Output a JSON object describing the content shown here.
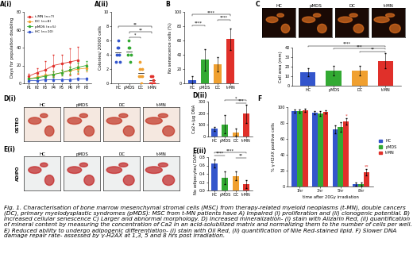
{
  "caption": "Fig. 1. Characterisation of bone marrow mesenchymal stromal cells (MSC) from therapy-related myeloid neoplasms (t-MN), double cancers (DC), primary myelodysplastic syndromes (pMDS): MSC from t-MN patients have A) Impaired (i) proliferation and (ii) clonogenic potential. B) Increased cellular senescence C) Larger and abnormal morphology. D) Increased mineralization- (i) stain with Alizarin Red, (ii) quantification of mineral content by measuring the concentration of Ca2 in an acid-solubilized matrix and normalizing them to the number of cells per well. E) Reduced ability to undergo adipogenic differentiation- (i) stain with Oil Red, (ii) quantification of Nile Red-stained lipid. F) Slower DNA damage repair rate- assessed by γ-H2AX at 1,3, 5 and 8 hrs post irradiation.",
  "images": [
    {
      "title": "C",
      "labels": [
        "HC",
        "pMDS",
        "DC",
        "t-MN"
      ]
    },
    {
      "title": "D(i)",
      "row_label": "OSTEO",
      "labels": [
        "HC",
        "pMDS",
        "DC",
        "t-MN"
      ]
    },
    {
      "title": "E(i)",
      "row_label": "ADIPO",
      "labels": [
        "HC",
        "pMDS",
        "DC",
        "t-MN"
      ]
    }
  ],
  "chart_data": [
    {
      "type": "line",
      "title": "A(i)",
      "y_label": "Days for population doubling",
      "categories": [
        "P1",
        "P2",
        "P3",
        "P4",
        "P5",
        "P6",
        "P7",
        "P8"
      ],
      "ylim": [
        0,
        80
      ],
      "yticks": [
        0,
        20,
        40,
        60,
        80
      ],
      "legend": "upper left",
      "series": [
        {
          "name": "t-MN (n=7)",
          "color": "#e0302a",
          "marker": "o",
          "values": [
            8,
            12,
            15,
            20,
            22,
            24,
            26,
            null
          ],
          "errors": [
            3,
            5,
            10,
            12,
            10,
            15,
            15,
            null
          ]
        },
        {
          "name": "DC (n=8)",
          "color": "#f0a030",
          "marker": "o",
          "values": [
            5,
            7,
            9,
            10,
            12,
            14,
            16,
            17
          ],
          "errors": [
            1,
            2,
            2,
            3,
            3,
            4,
            4,
            4
          ]
        },
        {
          "name": "pMDS (n=5)",
          "color": "#33aa33",
          "marker": "o",
          "values": [
            5,
            6,
            8,
            10,
            12,
            15,
            18,
            20
          ],
          "errors": [
            1,
            2,
            2,
            3,
            3,
            4,
            5,
            5
          ]
        },
        {
          "name": "HC (n=10)",
          "color": "#3355cc",
          "marker": "o",
          "values": [
            3,
            3,
            4,
            4,
            4,
            4,
            5,
            5
          ],
          "errors": [
            1,
            1,
            1,
            1,
            1,
            1,
            1,
            1
          ]
        }
      ]
    },
    {
      "type": "scatter",
      "title": "A(ii)",
      "y_label": "Colonies/ 20000 cells",
      "categories": [
        "HC",
        "pMDS",
        "DC",
        "t-MN"
      ],
      "colors": [
        "#3355cc",
        "#33aa33",
        "#f0a030",
        "#e0302a"
      ],
      "values": [
        [
          3,
          4,
          5,
          5,
          6,
          4,
          3
        ],
        [
          4,
          5,
          6,
          5,
          3,
          4
        ],
        [
          1,
          2,
          3,
          1,
          0,
          2,
          1
        ],
        [
          0,
          1,
          0,
          1,
          0.5,
          0
        ]
      ],
      "means": [
        4.3,
        4.5,
        1.4,
        0.4
      ],
      "ylim": [
        0,
        10
      ],
      "yticks": [
        0,
        2,
        4,
        6,
        8,
        10
      ],
      "significance": [
        {
          "from": "pMDS",
          "to": "DC",
          "label": "*"
        },
        {
          "from": "pMDS",
          "to": "t-MN",
          "label": "**"
        },
        {
          "from": "HC",
          "to": "t-MN",
          "label": "**"
        }
      ]
    },
    {
      "type": "bar",
      "title": "B",
      "y_label": "No senescence cells (%)",
      "categories": [
        "HC",
        "pMDS",
        "DC",
        "t-MN"
      ],
      "colors": [
        "#3355cc",
        "#33aa33",
        "#f0a030",
        "#e0302a"
      ],
      "values": [
        5,
        33,
        27,
        62
      ],
      "errors": [
        5,
        15,
        10,
        15
      ],
      "ylim": [
        0,
        100
      ],
      "yticks": [
        0,
        20,
        40,
        60,
        80,
        100
      ],
      "significance": [
        {
          "from": "HC",
          "to": "pMDS",
          "label": "****"
        },
        {
          "from": "DC",
          "to": "t-MN",
          "label": "****"
        },
        {
          "from": "HC",
          "to": "t-MN",
          "label": "****"
        }
      ]
    },
    {
      "type": "bar",
      "y_label": "Cell area (mm)",
      "categories": [
        "HC",
        "pMDS",
        "DC",
        "t-MN"
      ],
      "colors": [
        "#3355cc",
        "#33aa33",
        "#f0a030",
        "#e0302a"
      ],
      "values": [
        14,
        16,
        16,
        26
      ],
      "errors": [
        4,
        5,
        5,
        8
      ],
      "ylim": [
        0,
        40
      ],
      "yticks": [
        0,
        10,
        20,
        30,
        40
      ],
      "significance": [
        {
          "from": "DC",
          "to": "t-MN",
          "label": "**"
        },
        {
          "from": "pMDS",
          "to": "t-MN",
          "label": "***"
        },
        {
          "from": "HC",
          "to": "t-MN",
          "label": "****"
        }
      ]
    },
    {
      "type": "bar",
      "title": "D(ii)",
      "y_label": "Ca2+/µg DNA",
      "categories": [
        "HC",
        "pMDS",
        "DC",
        "t-MN"
      ],
      "colors": [
        "#3355cc",
        "#33aa33",
        "#f0a030",
        "#e0302a"
      ],
      "values": [
        65,
        105,
        35,
        195
      ],
      "errors": [
        20,
        80,
        30,
        80
      ],
      "ylim": [
        0,
        300
      ],
      "yticks": [
        0,
        100,
        200,
        300
      ],
      "significance": [
        {
          "from": "DC",
          "to": "t-MN",
          "label": "***"
        },
        {
          "from": "pMDS",
          "to": "t-MN",
          "label": "*"
        }
      ]
    },
    {
      "type": "bar",
      "title": "E(ii)",
      "y_label": "No adipocytes/ DAPI",
      "categories": [
        "HC",
        "pMDS",
        "DC",
        "t-MN"
      ],
      "colors": [
        "#3355cc",
        "#33aa33",
        "#f0a030",
        "#e0302a"
      ],
      "values": [
        0.65,
        0.3,
        0.35,
        0.15
      ],
      "errors": [
        0.1,
        0.15,
        0.1,
        0.1
      ],
      "ylim": [
        0,
        0.8
      ],
      "yticks": [
        0.0,
        0.2,
        0.4,
        0.6,
        0.8
      ],
      "significance": [
        {
          "from": "DC",
          "to": "t-MN",
          "label": "**"
        },
        {
          "from": "HC",
          "to": "pMDS",
          "label": "****"
        },
        {
          "from": "HC",
          "to": "t-MN",
          "label": "****"
        }
      ]
    },
    {
      "type": "bar",
      "title": "F",
      "y_label": "% γ-H2AX positive cells",
      "x_label": "time after 20Gy irradiation",
      "categories": [
        "1hr",
        "3hr",
        "5hr",
        "8hr"
      ],
      "ylim": [
        0,
        100
      ],
      "yticks": [
        0,
        20,
        40,
        60,
        80,
        100
      ],
      "legend": "right",
      "series": [
        {
          "name": "HC",
          "color": "#3355cc",
          "values": [
            95,
            93,
            72,
            3
          ],
          "errors": [
            2,
            2,
            5,
            2
          ]
        },
        {
          "name": "pMDS",
          "color": "#33aa33",
          "values": [
            95,
            92,
            75,
            3
          ],
          "errors": [
            2,
            3,
            6,
            2
          ]
        },
        {
          "name": "t-MN",
          "color": "#e0302a",
          "values": [
            96,
            94,
            82,
            18
          ],
          "errors": [
            2,
            2,
            4,
            4
          ]
        }
      ],
      "annotations": [
        {
          "category": "5hr",
          "series": "t-MN",
          "label": "*"
        },
        {
          "category": "8hr",
          "series": "t-MN",
          "label": "**"
        }
      ]
    }
  ]
}
